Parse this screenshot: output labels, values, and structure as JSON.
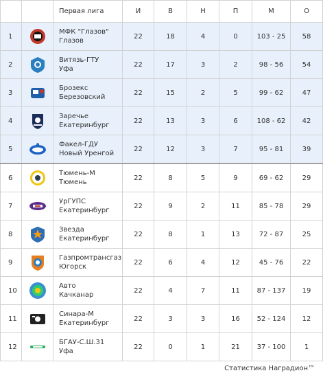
{
  "league": {
    "header": {
      "team": "Первая лига",
      "games": "И",
      "wins": "В",
      "draws": "Н",
      "losses": "П",
      "goals": "М",
      "points": "О"
    },
    "rows": [
      {
        "pos": "1",
        "name1": "МФК \"Глазов\"",
        "name2": "Глазов",
        "games": "22",
        "wins": "18",
        "draws": "4",
        "losses": "0",
        "goals": "103 - 25",
        "points": "58",
        "logo": "glazov-logo",
        "zone": "top"
      },
      {
        "pos": "2",
        "name1": "Витязь-ГТУ",
        "name2": "Уфа",
        "games": "22",
        "wins": "17",
        "draws": "3",
        "losses": "2",
        "goals": "98 - 56",
        "points": "54",
        "logo": "vityaz-logo",
        "zone": "top"
      },
      {
        "pos": "3",
        "name1": "Брозекс",
        "name2": "Березовский",
        "games": "22",
        "wins": "15",
        "draws": "2",
        "losses": "5",
        "goals": "99 - 62",
        "points": "47",
        "logo": "brozeks-logo",
        "zone": "top"
      },
      {
        "pos": "4",
        "name1": "Заречье",
        "name2": "Екатеринбург",
        "games": "22",
        "wins": "13",
        "draws": "3",
        "losses": "6",
        "goals": "108 - 62",
        "points": "42",
        "logo": "zarechye-logo",
        "zone": "top"
      },
      {
        "pos": "5",
        "name1": "Факел-ГДУ",
        "name2": "Новый Уренгой",
        "games": "22",
        "wins": "12",
        "draws": "3",
        "losses": "7",
        "goals": "95 - 81",
        "points": "39",
        "logo": "fakel-logo",
        "zone": "top"
      },
      {
        "pos": "6",
        "name1": "Тюмень-М",
        "name2": "Тюмень",
        "games": "22",
        "wins": "8",
        "draws": "5",
        "losses": "9",
        "goals": "69 - 62",
        "points": "29",
        "logo": "tyumen-logo",
        "zone": ""
      },
      {
        "pos": "7",
        "name1": "УрГУПС",
        "name2": "Екатеринбург",
        "games": "22",
        "wins": "9",
        "draws": "2",
        "losses": "11",
        "goals": "85 - 78",
        "points": "29",
        "logo": "urgups-logo",
        "zone": ""
      },
      {
        "pos": "8",
        "name1": "Звезда",
        "name2": "Екатеринбург",
        "games": "22",
        "wins": "8",
        "draws": "1",
        "losses": "13",
        "goals": "72 - 87",
        "points": "25",
        "logo": "zvezda-logo",
        "zone": ""
      },
      {
        "pos": "9",
        "name1": "Газпромтрансгаз",
        "name2": "Югорск",
        "games": "22",
        "wins": "6",
        "draws": "4",
        "losses": "12",
        "goals": "45 - 76",
        "points": "22",
        "logo": "gazprom-yugorsk-logo",
        "zone": ""
      },
      {
        "pos": "10",
        "name1": "Авто",
        "name2": "Качканар",
        "games": "22",
        "wins": "4",
        "draws": "7",
        "losses": "11",
        "goals": "87 - 137",
        "points": "19",
        "logo": "avto-logo",
        "zone": ""
      },
      {
        "pos": "11",
        "name1": "Синара-М",
        "name2": "Екатеринбург",
        "games": "22",
        "wins": "3",
        "draws": "3",
        "losses": "16",
        "goals": "52 - 124",
        "points": "12",
        "logo": "sinara-logo",
        "zone": ""
      },
      {
        "pos": "12",
        "name1": "БГАУ-С.Ш.31",
        "name2": "Уфа",
        "games": "22",
        "wins": "0",
        "draws": "1",
        "losses": "21",
        "goals": "37 - 100",
        "points": "1",
        "logo": "bgau-logo",
        "zone": ""
      }
    ]
  },
  "footer": {
    "text": "Статистика Наградион™"
  },
  "colors": {
    "zone_top_bg": "#e8f1fb",
    "border": "#d2d2d2",
    "split_line": "#a0a0a0"
  }
}
